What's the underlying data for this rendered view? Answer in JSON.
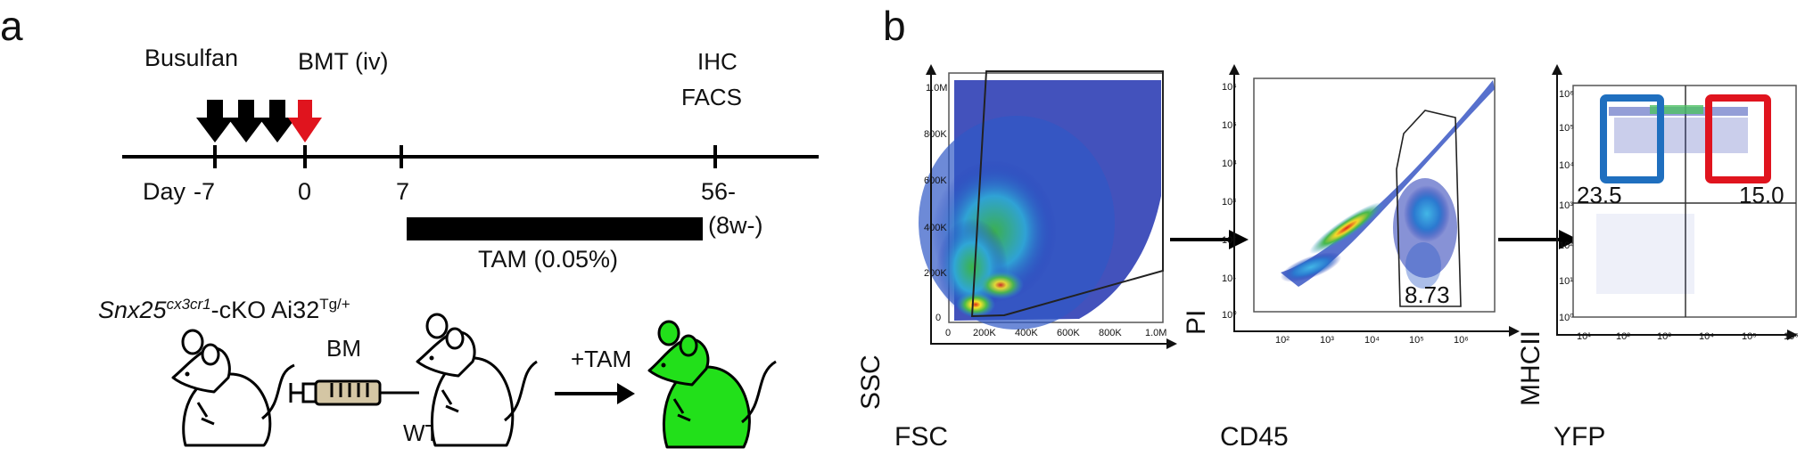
{
  "panel_a": {
    "letter": "a",
    "busulfan_label": "Busulfan",
    "bmt_label": "BMT (iv)",
    "ihc_label": "IHC",
    "facs_label": "FACS",
    "day_prefix": "Day",
    "days": [
      "-7",
      "0",
      "7",
      "56-"
    ],
    "weeks_label": "(8w-)",
    "tam_label": "TAM (0.05%)",
    "genotype": {
      "gene": "Snx25",
      "gene_sup": "cx3cr1",
      "suffix": "-cKO",
      "reporter": "Ai32",
      "reporter_sup": "Tg/+"
    },
    "bm_label": "BM",
    "wt_label": "WT",
    "plus_tam_label": "+TAM",
    "colors": {
      "black_arrow": "#000000",
      "red_arrow": "#e0141e",
      "green_mouse": "#22e01a",
      "syringe_body": "#d4c6a4"
    }
  },
  "panel_b": {
    "letter": "b",
    "plot1": {
      "xlabel": "FSC",
      "ylabel": "SSC",
      "x_ticks": [
        "0",
        "200K",
        "400K",
        "600K",
        "800K",
        "1.0M"
      ],
      "y_ticks": [
        "0",
        "200K",
        "400K",
        "600K",
        "800K",
        "1.0M"
      ]
    },
    "plot2": {
      "xlabel": "CD45",
      "ylabel": "PI",
      "x_ticks": [
        "10²",
        "10³",
        "10⁴",
        "10⁵",
        "10⁶"
      ],
      "y_ticks": [
        "10⁰",
        "10¹",
        "10²",
        "10³",
        "10⁴",
        "10⁵",
        "10⁶"
      ],
      "gate_value": "8.73"
    },
    "plot3": {
      "xlabel": "YFP",
      "ylabel": "MHCII",
      "x_ticks": [
        "10¹",
        "10²",
        "10³",
        "10⁴",
        "10⁵",
        "10⁶"
      ],
      "y_ticks": [
        "10⁰",
        "10¹",
        "10²",
        "10³",
        "10⁴",
        "10⁵",
        "10⁶"
      ],
      "quad_left_value": "23.5",
      "quad_right_value": "15.0",
      "colors": {
        "left_gate": "#1f6fbf",
        "right_gate": "#e0141e"
      }
    }
  }
}
